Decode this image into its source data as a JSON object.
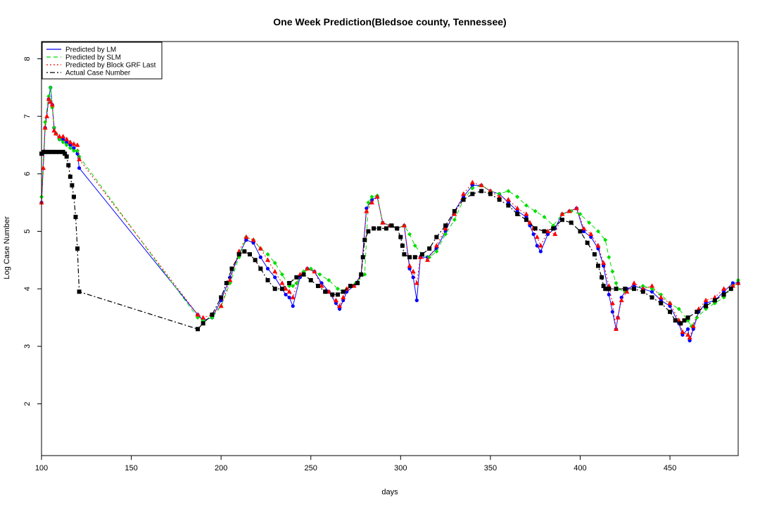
{
  "chart_data": {
    "type": "line",
    "title": "One Week Prediction(Bledsoe county, Tennessee)",
    "xlabel": "days",
    "ylabel": "Log Case Number",
    "xlim": [
      100,
      488
    ],
    "ylim": [
      1.1,
      8.3
    ],
    "x_ticks": [
      100,
      150,
      200,
      250,
      300,
      350,
      400,
      450
    ],
    "y_ticks": [
      2,
      3,
      4,
      5,
      6,
      7,
      8
    ],
    "legend_position": "top-left",
    "series": [
      {
        "name": "Predicted by LM",
        "color": "#0000ff",
        "line_style": "solid",
        "marker": "circle",
        "x": [
          100,
          102,
          104,
          105,
          106,
          107,
          108,
          110,
          112,
          114,
          116,
          118,
          120,
          121,
          187,
          190,
          195,
          200,
          205,
          210,
          214,
          218,
          222,
          226,
          230,
          234,
          236,
          238,
          240,
          244,
          248,
          252,
          256,
          260,
          264,
          266,
          268,
          270,
          274,
          278,
          281,
          284,
          287,
          290,
          294,
          298,
          302,
          305,
          307,
          309,
          311,
          315,
          320,
          325,
          330,
          335,
          340,
          345,
          350,
          355,
          360,
          365,
          370,
          372,
          374,
          376,
          378,
          382,
          386,
          390,
          394,
          398,
          402,
          406,
          410,
          413,
          416,
          418,
          420,
          421,
          423,
          426,
          430,
          435,
          440,
          445,
          450,
          455,
          457,
          460,
          461,
          463,
          466,
          470,
          475,
          480,
          485,
          488
        ],
        "y": [
          5.5,
          6.8,
          7.3,
          7.5,
          7.2,
          6.8,
          6.7,
          6.6,
          6.6,
          6.55,
          6.5,
          6.45,
          6.35,
          6.1,
          3.55,
          3.45,
          3.5,
          3.8,
          4.2,
          4.6,
          4.85,
          4.8,
          4.55,
          4.35,
          4.2,
          4.0,
          3.9,
          3.85,
          3.7,
          4.2,
          4.35,
          4.3,
          4.1,
          3.95,
          3.75,
          3.65,
          3.8,
          3.95,
          4.05,
          4.25,
          5.4,
          5.55,
          5.6,
          5.15,
          5.1,
          5.05,
          5.1,
          4.35,
          4.2,
          3.8,
          4.55,
          4.55,
          4.7,
          5.0,
          5.35,
          5.6,
          5.8,
          5.8,
          5.7,
          5.65,
          5.5,
          5.35,
          5.25,
          5.1,
          4.95,
          4.75,
          4.65,
          4.95,
          5.05,
          5.3,
          5.35,
          5.4,
          5.0,
          4.9,
          4.7,
          4.4,
          3.9,
          3.6,
          3.3,
          3.5,
          3.85,
          4.0,
          4.05,
          4.0,
          3.95,
          3.8,
          3.7,
          3.4,
          3.2,
          3.3,
          3.1,
          3.3,
          3.6,
          3.75,
          3.8,
          3.95,
          4.1,
          4.1
        ]
      },
      {
        "name": "Predicted by SLM",
        "color": "#00dd00",
        "line_style": "dashed",
        "marker": "diamond",
        "x": [
          100,
          102,
          104,
          105,
          106,
          107,
          108,
          110,
          112,
          114,
          116,
          118,
          120,
          121,
          187,
          190,
          195,
          200,
          205,
          210,
          214,
          218,
          222,
          226,
          230,
          234,
          238,
          240,
          242,
          246,
          250,
          255,
          260,
          265,
          268,
          270,
          275,
          280,
          282,
          284,
          287,
          290,
          294,
          298,
          302,
          305,
          308,
          312,
          316,
          320,
          325,
          330,
          335,
          340,
          345,
          350,
          355,
          360,
          365,
          370,
          375,
          380,
          385,
          390,
          395,
          400,
          405,
          410,
          414,
          416,
          418,
          420,
          421,
          425,
          430,
          435,
          440,
          445,
          450,
          455,
          460,
          462,
          465,
          470,
          475,
          480,
          485,
          488
        ],
        "y": [
          5.6,
          6.9,
          7.35,
          7.5,
          7.15,
          6.8,
          6.7,
          6.6,
          6.55,
          6.5,
          6.45,
          6.4,
          6.4,
          6.3,
          3.5,
          3.45,
          3.5,
          3.7,
          4.1,
          4.55,
          4.9,
          4.85,
          4.7,
          4.6,
          4.45,
          4.25,
          4.05,
          4.05,
          4.1,
          4.3,
          4.35,
          4.25,
          4.15,
          4.0,
          3.95,
          4.0,
          4.1,
          4.25,
          5.5,
          5.6,
          5.62,
          5.15,
          5.1,
          5.05,
          5.1,
          4.95,
          4.75,
          4.6,
          4.55,
          4.65,
          4.95,
          5.2,
          5.55,
          5.75,
          5.8,
          5.7,
          5.65,
          5.7,
          5.6,
          5.45,
          5.35,
          5.25,
          5.1,
          5.3,
          5.35,
          5.3,
          5.15,
          5.0,
          4.85,
          4.55,
          4.3,
          4.1,
          4.0,
          3.95,
          4.0,
          4.05,
          4.0,
          3.9,
          3.75,
          3.65,
          3.45,
          3.35,
          3.5,
          3.65,
          3.75,
          3.85,
          4.05,
          4.15
        ]
      },
      {
        "name": "Predicted by Block GRF Last",
        "color": "#ff0000",
        "line_style": "dotted",
        "marker": "triangle",
        "x": [
          100,
          101,
          102,
          103,
          104,
          105,
          106,
          107,
          108,
          110,
          112,
          114,
          116,
          118,
          120,
          121,
          187,
          190,
          195,
          200,
          205,
          210,
          214,
          218,
          222,
          226,
          230,
          234,
          236,
          238,
          240,
          244,
          248,
          252,
          256,
          260,
          264,
          266,
          268,
          270,
          274,
          278,
          281,
          284,
          287,
          290,
          294,
          298,
          302,
          305,
          307,
          309,
          311,
          315,
          320,
          325,
          330,
          335,
          340,
          345,
          350,
          355,
          360,
          365,
          370,
          372,
          374,
          376,
          378,
          382,
          386,
          390,
          394,
          398,
          402,
          406,
          410,
          413,
          416,
          418,
          420,
          421,
          423,
          426,
          430,
          435,
          440,
          445,
          450,
          455,
          457,
          460,
          461,
          463,
          466,
          470,
          475,
          480,
          485,
          488
        ],
        "y": [
          5.5,
          6.1,
          6.8,
          7.0,
          7.3,
          7.25,
          7.2,
          6.75,
          6.7,
          6.65,
          6.65,
          6.6,
          6.55,
          6.52,
          6.5,
          6.25,
          3.55,
          3.5,
          3.55,
          3.7,
          4.15,
          4.65,
          4.9,
          4.85,
          4.7,
          4.5,
          4.3,
          4.1,
          4.0,
          3.95,
          3.85,
          4.25,
          4.35,
          4.3,
          4.05,
          3.95,
          3.8,
          3.7,
          3.85,
          4.0,
          4.05,
          4.25,
          5.35,
          5.5,
          5.6,
          5.15,
          5.1,
          5.05,
          5.1,
          4.4,
          4.3,
          4.1,
          4.55,
          4.5,
          4.75,
          5.05,
          5.3,
          5.65,
          5.85,
          5.8,
          5.7,
          5.6,
          5.55,
          5.4,
          5.3,
          5.15,
          5.05,
          4.9,
          4.75,
          5.0,
          4.95,
          5.3,
          5.35,
          5.4,
          5.05,
          4.95,
          4.75,
          4.45,
          4.05,
          3.75,
          3.3,
          3.5,
          3.8,
          3.95,
          4.1,
          4.0,
          4.05,
          3.85,
          3.75,
          3.45,
          3.25,
          3.2,
          3.15,
          3.35,
          3.65,
          3.8,
          3.85,
          4.0,
          4.05,
          4.1
        ]
      },
      {
        "name": "Actual Case Number",
        "color": "#000000",
        "line_style": "dotdash",
        "marker": "square",
        "x": [
          100,
          101,
          102,
          104,
          106,
          108,
          110,
          112,
          113,
          114,
          115,
          116,
          117,
          118,
          119,
          120,
          121,
          187,
          190,
          195,
          200,
          203,
          206,
          210,
          213,
          216,
          219,
          222,
          226,
          230,
          234,
          238,
          242,
          246,
          250,
          254,
          258,
          262,
          265,
          268,
          272,
          276,
          278,
          279,
          280,
          282,
          285,
          288,
          292,
          295,
          298,
          300,
          301,
          302,
          305,
          308,
          312,
          316,
          320,
          325,
          330,
          335,
          340,
          345,
          350,
          355,
          360,
          365,
          370,
          375,
          380,
          385,
          390,
          395,
          400,
          404,
          408,
          410,
          412,
          413,
          414,
          415,
          416,
          420,
          425,
          430,
          435,
          440,
          445,
          450,
          453,
          456,
          458,
          460,
          465,
          470,
          475,
          480,
          484
        ],
        "y": [
          6.35,
          6.38,
          6.38,
          6.38,
          6.38,
          6.38,
          6.38,
          6.38,
          6.35,
          6.3,
          6.15,
          5.95,
          5.8,
          5.6,
          5.25,
          4.7,
          3.95,
          3.3,
          3.4,
          3.55,
          3.85,
          4.1,
          4.35,
          4.6,
          4.65,
          4.6,
          4.5,
          4.35,
          4.15,
          4.0,
          4.0,
          4.1,
          4.2,
          4.25,
          4.15,
          4.05,
          3.95,
          3.9,
          3.9,
          3.95,
          4.05,
          4.1,
          4.25,
          4.55,
          4.85,
          5.0,
          5.05,
          5.05,
          5.05,
          5.1,
          5.05,
          4.9,
          4.75,
          4.6,
          4.55,
          4.55,
          4.6,
          4.7,
          4.9,
          5.1,
          5.35,
          5.55,
          5.65,
          5.7,
          5.65,
          5.55,
          5.45,
          5.3,
          5.2,
          5.05,
          5.0,
          5.05,
          5.2,
          5.15,
          5.0,
          4.8,
          4.6,
          4.4,
          4.2,
          4.05,
          4.0,
          4.0,
          4.0,
          4.0,
          4.0,
          4.0,
          3.95,
          3.85,
          3.75,
          3.6,
          3.45,
          3.4,
          3.45,
          3.5,
          3.6,
          3.7,
          3.8,
          3.9,
          4.0
        ]
      }
    ]
  }
}
